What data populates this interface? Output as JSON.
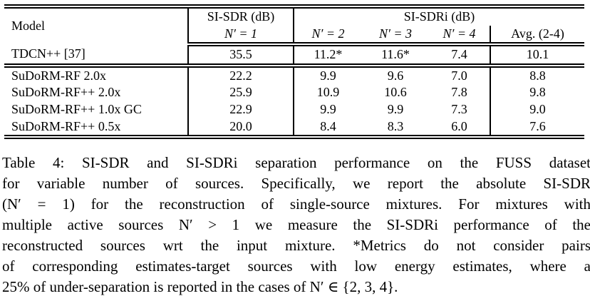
{
  "table": {
    "header": {
      "model": "Model",
      "sisdr_group": "SI-SDR (dB)",
      "sisdri_group": "SI-SDRi (dB)",
      "n1": "N′ = 1",
      "n2": "N′ = 2",
      "n3": "N′ = 3",
      "n4": "N′ = 4",
      "avg": "Avg. (2-4)"
    },
    "rows": [
      {
        "model": "TDCN++ [37]",
        "n1": "35.5",
        "n2": "11.2*",
        "n3": "11.6*",
        "n4": "7.4",
        "avg": "10.1"
      },
      {
        "model": "SuDoRM-RF 2.0x",
        "n1": "22.2",
        "n2": "9.9",
        "n3": "9.6",
        "n4": "7.0",
        "avg": "8.8"
      },
      {
        "model": "SuDoRM-RF++ 2.0x",
        "n1": "25.9",
        "n2": "10.9",
        "n3": "10.6",
        "n4": "7.8",
        "avg": "9.8"
      },
      {
        "model": "SuDoRM-RF++ 1.0x GC",
        "n1": "22.9",
        "n2": "9.9",
        "n3": "9.9",
        "n4": "7.3",
        "avg": "9.0"
      },
      {
        "model": "SuDoRM-RF++ 0.5x",
        "n1": "20.0",
        "n2": "8.4",
        "n3": "8.3",
        "n4": "6.0",
        "avg": "7.6"
      }
    ]
  },
  "caption": {
    "lines": [
      "Table 4: SI-SDR and SI-SDRi separation performance on the FUSS dataset",
      "for variable number of sources. Specifically, we report the absolute SI-SDR",
      "(N′ = 1) for the reconstruction of single-source mixtures. For mixtures with",
      "multiple active sources N′ > 1 we measure the SI-SDRi performance of the",
      "reconstructed sources wrt the input mixture. *Metrics do not consider pairs",
      "of corresponding estimates-target sources with low energy estimates, where a",
      "25% of under-separation is reported in the cases of N′ ∈ {2, 3, 4}."
    ]
  }
}
